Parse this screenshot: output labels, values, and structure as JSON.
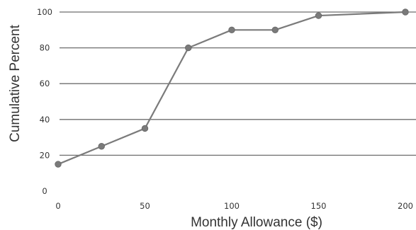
{
  "chart_data": {
    "type": "line",
    "title": "",
    "xlabel": "Monthly Allowance ($)",
    "ylabel": "Cumulative Percent",
    "xlim": [
      0,
      200
    ],
    "ylim": [
      0,
      100
    ],
    "x_ticks": [
      0,
      50,
      100,
      150,
      200
    ],
    "y_ticks": [
      0,
      20,
      40,
      60,
      80,
      100
    ],
    "grid": "horizontal",
    "legend": "none",
    "line_color": "#7b7b7b",
    "marker_color": "#7a7a7a",
    "series": [
      {
        "x": [
          0,
          25,
          50,
          75,
          100,
          125,
          150,
          200
        ],
        "values": [
          15,
          25,
          35,
          80,
          90,
          90,
          98,
          100
        ]
      }
    ]
  }
}
